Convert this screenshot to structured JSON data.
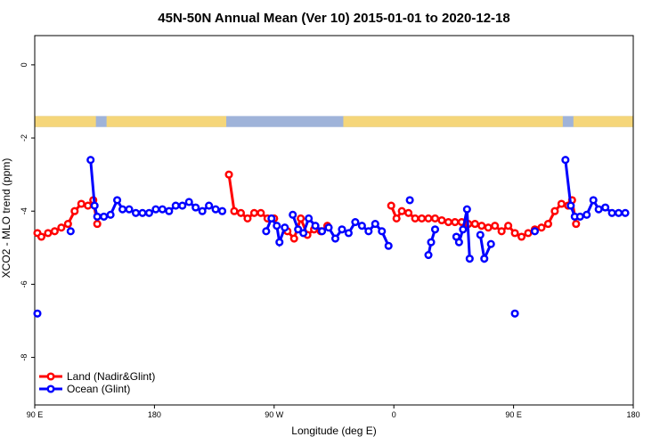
{
  "chart_data": {
    "type": "line",
    "title": "45N-50N Annual Mean (Ver 10)   2015-01-01 to 2020-12-18",
    "xlabel": "Longitude (deg E)",
    "ylabel": "XCO2 - MLO trend (ppm)",
    "xlim": [
      90,
      540
    ],
    "ylim": [
      -9.3,
      0.8
    ],
    "x_ticks": [
      {
        "value": 90,
        "label": "90 E"
      },
      {
        "value": 180,
        "label": "180"
      },
      {
        "value": 270,
        "label": "90 W"
      },
      {
        "value": 360,
        "label": "0"
      },
      {
        "value": 450,
        "label": "90 E"
      },
      {
        "value": 540,
        "label": "180"
      }
    ],
    "y_ticks": [
      {
        "value": 0,
        "label": "0"
      },
      {
        "value": -2,
        "label": "-2"
      },
      {
        "value": -4,
        "label": "-4"
      },
      {
        "value": -6,
        "label": "-6"
      },
      {
        "value": -8,
        "label": "-8"
      }
    ],
    "map_strip": {
      "y_top": -1.4,
      "y_bottom": -1.7
    },
    "series": [
      {
        "name": "Land (Nadir&Glint)",
        "color": "#ff0000",
        "segments": [
          [
            [
              92,
              -4.6
            ],
            [
              95,
              -4.7
            ],
            [
              100,
              -4.6
            ],
            [
              105,
              -4.55
            ],
            [
              110,
              -4.45
            ],
            [
              115,
              -4.35
            ],
            [
              120,
              -4.0
            ],
            [
              125,
              -3.8
            ],
            [
              130,
              -3.85
            ],
            [
              134,
              -3.7
            ],
            [
              137,
              -4.35
            ]
          ],
          [
            [
              236,
              -3.0
            ],
            [
              240,
              -4.0
            ],
            [
              245,
              -4.05
            ],
            [
              250,
              -4.2
            ],
            [
              255,
              -4.05
            ],
            [
              260,
              -4.05
            ],
            [
              265,
              -4.2
            ],
            [
              270,
              -4.2
            ]
          ],
          [
            [
              280,
              -4.55
            ],
            [
              285,
              -4.75
            ],
            [
              290,
              -4.2
            ],
            [
              295,
              -4.65
            ],
            [
              300,
              -4.5
            ],
            [
              305,
              -4.55
            ],
            [
              310,
              -4.4
            ]
          ],
          [
            [
              358,
              -3.85
            ],
            [
              362,
              -4.2
            ],
            [
              366,
              -4.0
            ],
            [
              371,
              -4.05
            ],
            [
              376,
              -4.2
            ],
            [
              381,
              -4.2
            ],
            [
              386,
              -4.2
            ],
            [
              391,
              -4.2
            ],
            [
              396,
              -4.25
            ],
            [
              401,
              -4.3
            ],
            [
              406,
              -4.3
            ],
            [
              411,
              -4.3
            ],
            [
              416,
              -4.35
            ],
            [
              421,
              -4.35
            ],
            [
              426,
              -4.4
            ],
            [
              431,
              -4.45
            ],
            [
              436,
              -4.4
            ],
            [
              441,
              -4.55
            ],
            [
              446,
              -4.4
            ],
            [
              451,
              -4.6
            ],
            [
              456,
              -4.7
            ],
            [
              461,
              -4.6
            ],
            [
              466,
              -4.5
            ],
            [
              471,
              -4.45
            ],
            [
              476,
              -4.35
            ],
            [
              481,
              -4.0
            ],
            [
              486,
              -3.8
            ],
            [
              491,
              -3.85
            ],
            [
              494,
              -3.7
            ],
            [
              497,
              -4.35
            ]
          ]
        ]
      },
      {
        "name": "Ocean (Glint)",
        "color": "#0000ff",
        "segments": [
          [
            [
              92,
              -6.8
            ]
          ],
          [
            [
              117,
              -4.55
            ]
          ],
          [
            [
              132,
              -2.6
            ],
            [
              135,
              -3.85
            ],
            [
              137,
              -4.15
            ],
            [
              142,
              -4.15
            ],
            [
              147,
              -4.1
            ],
            [
              152,
              -3.7
            ],
            [
              156,
              -3.95
            ],
            [
              161,
              -3.95
            ],
            [
              166,
              -4.05
            ],
            [
              171,
              -4.05
            ],
            [
              176,
              -4.05
            ],
            [
              181,
              -3.95
            ],
            [
              186,
              -3.95
            ],
            [
              191,
              -4.0
            ],
            [
              196,
              -3.85
            ],
            [
              201,
              -3.85
            ],
            [
              206,
              -3.75
            ],
            [
              211,
              -3.9
            ],
            [
              216,
              -4.0
            ],
            [
              221,
              -3.85
            ],
            [
              226,
              -3.95
            ],
            [
              231,
              -4.0
            ]
          ],
          [
            [
              264,
              -4.55
            ],
            [
              268,
              -4.2
            ],
            [
              272,
              -4.4
            ],
            [
              274,
              -4.85
            ],
            [
              278,
              -4.45
            ]
          ],
          [
            [
              284,
              -4.1
            ],
            [
              288,
              -4.5
            ],
            [
              292,
              -4.6
            ],
            [
              296,
              -4.2
            ],
            [
              301,
              -4.4
            ],
            [
              306,
              -4.55
            ],
            [
              311,
              -4.45
            ],
            [
              316,
              -4.75
            ],
            [
              321,
              -4.5
            ],
            [
              326,
              -4.6
            ],
            [
              331,
              -4.3
            ],
            [
              336,
              -4.4
            ],
            [
              341,
              -4.55
            ],
            [
              346,
              -4.35
            ],
            [
              351,
              -4.55
            ],
            [
              356,
              -4.95
            ]
          ],
          [
            [
              372,
              -3.7
            ]
          ],
          [
            [
              386,
              -5.2
            ],
            [
              388,
              -4.85
            ],
            [
              391,
              -4.5
            ]
          ],
          [
            [
              407,
              -4.7
            ],
            [
              409,
              -4.85
            ],
            [
              412,
              -4.5
            ],
            [
              415,
              -3.95
            ],
            [
              417,
              -5.3
            ]
          ],
          [
            [
              425,
              -4.65
            ],
            [
              428,
              -5.3
            ],
            [
              433,
              -4.9
            ]
          ],
          [
            [
              451,
              -6.8
            ]
          ],
          [
            [
              466,
              -4.55
            ]
          ],
          [
            [
              489,
              -2.6
            ],
            [
              493,
              -3.85
            ],
            [
              496,
              -4.15
            ],
            [
              500,
              -4.15
            ],
            [
              505,
              -4.1
            ],
            [
              510,
              -3.7
            ],
            [
              514,
              -3.95
            ],
            [
              519,
              -3.9
            ],
            [
              524,
              -4.05
            ],
            [
              529,
              -4.05
            ],
            [
              534,
              -4.05
            ]
          ]
        ]
      }
    ]
  }
}
